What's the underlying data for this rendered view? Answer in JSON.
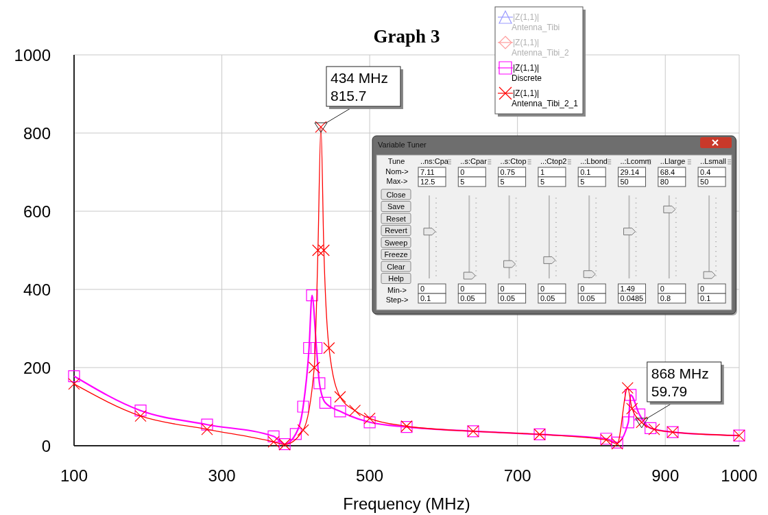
{
  "chart_data": {
    "type": "line",
    "title": "Graph 3",
    "xlabel": "Frequency (MHz)",
    "xlim": [
      100,
      1000
    ],
    "xticks": [
      100,
      300,
      500,
      700,
      900,
      1000
    ],
    "ylim": [
      0,
      1000
    ],
    "yticks": [
      0,
      200,
      400,
      600,
      800,
      1000
    ],
    "grid": true,
    "legend": "top right",
    "line_style": "solid",
    "series": [
      {
        "name": "|Z(1,1)| Antenna_Tibi",
        "color": "#9a9aff",
        "marker": "triangle"
      },
      {
        "name": "|Z(1,1)| Antenna_Tibi_2",
        "color": "#ff9a9a",
        "marker": "diamond"
      },
      {
        "name": "|Z(1,1)| Discrete",
        "color": "#ff00ff",
        "marker": "square",
        "x": [
          100,
          190,
          280,
          370,
          385,
          400,
          410,
          418,
          422,
          428,
          432,
          440,
          460,
          500,
          550,
          640,
          730,
          820,
          835,
          850,
          853,
          865,
          880,
          910,
          1000
        ],
        "values": [
          178,
          90,
          54,
          24,
          4,
          30,
          100,
          250,
          385,
          250,
          160,
          110,
          88,
          60,
          48,
          37,
          29,
          18,
          8,
          60,
          130,
          80,
          45,
          35,
          26
        ]
      },
      {
        "name": "|Z(1,1)| Antenna_Tibi_2_1",
        "color": "#ff0000",
        "marker": "cross",
        "x": [
          100,
          190,
          280,
          370,
          385,
          410,
          425,
          430,
          434,
          438,
          445,
          460,
          480,
          500,
          550,
          640,
          730,
          820,
          835,
          849,
          855,
          868,
          885,
          910,
          1000
        ],
        "values": [
          158,
          76,
          42,
          10,
          3,
          40,
          200,
          500,
          815.7,
          500,
          250,
          125,
          90,
          70,
          50,
          37,
          29,
          15,
          5,
          148,
          95,
          59.79,
          42,
          35,
          26
        ]
      }
    ],
    "annotations": [
      {
        "text": "434 MHz\n815.7",
        "x": 434,
        "y": 815.7
      },
      {
        "text": "868 MHz\n59.79",
        "x": 868,
        "y": 59.79
      },
      "Variable Tuner",
      "Tune",
      "Nom->",
      "Max->",
      "Close",
      "Save",
      "Reset",
      "Revert",
      "Sweep",
      "Freeze",
      "Clear",
      "Help",
      "Min->",
      "Step->",
      "..ns:Cpa",
      "7.11",
      "12.5",
      "0",
      "0.1",
      "..s:Cpar",
      "0",
      "5",
      "0",
      "0.05",
      "..s:Ctop",
      "0.75",
      "5",
      "0",
      "0.05",
      "..:Ctop2",
      "1",
      "5",
      "0",
      "0.05",
      "..:Lbond",
      "0.1",
      "5",
      "0",
      "0.05",
      "..:Lcomm",
      "29.14",
      "50",
      "1.49",
      "0.0485",
      "..Llarge",
      "68.4",
      "80",
      "0",
      "0.8",
      "..Lsmall",
      "0.4",
      "50",
      "0",
      "0.1"
    ]
  }
}
